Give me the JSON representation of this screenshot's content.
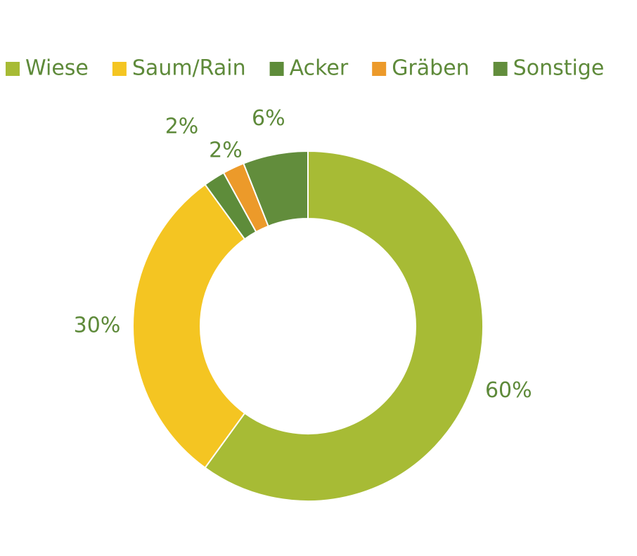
{
  "chart_data": {
    "type": "donut",
    "categories": [
      "Wiese",
      "Saum/Rain",
      "Acker",
      "Gräben",
      "Sonstige"
    ],
    "values": [
      60,
      30,
      2,
      2,
      6
    ],
    "value_labels": [
      "60%",
      "30%",
      "2%",
      "2%",
      "6%"
    ],
    "colors": [
      "#a7bb35",
      "#f4c522",
      "#5e8c3a",
      "#ec9a2a",
      "#628d3c"
    ],
    "legend": "top"
  }
}
